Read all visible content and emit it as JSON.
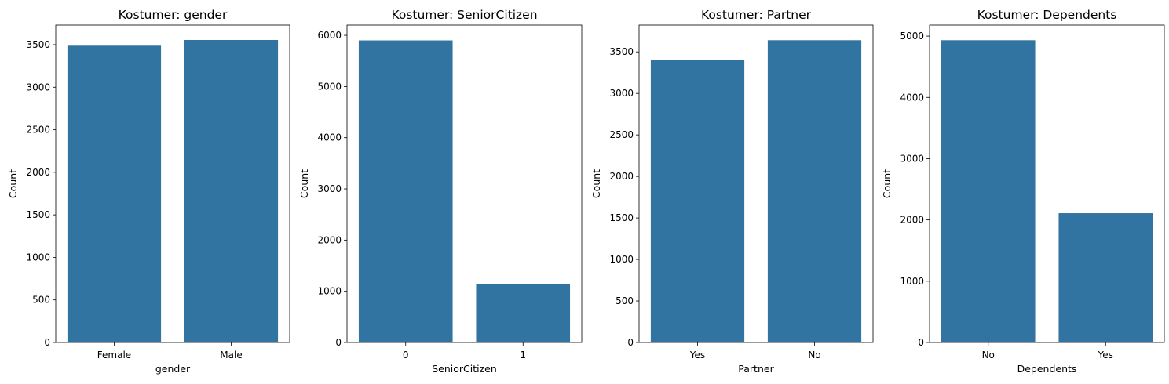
{
  "figure": {
    "background": "#ffffff",
    "bar_color": "#3274a1"
  },
  "chart_data": [
    {
      "type": "bar",
      "title": "Kostumer: gender",
      "xlabel": "gender",
      "ylabel": "Count",
      "categories": [
        "Female",
        "Male"
      ],
      "values": [
        3488,
        3555
      ],
      "ylim": [
        0,
        3730
      ],
      "yticks": [
        0,
        500,
        1000,
        1500,
        2000,
        2500,
        3000,
        3500
      ],
      "grid": false,
      "legend": "none"
    },
    {
      "type": "bar",
      "title": "Kostumer: SeniorCitizen",
      "xlabel": "SeniorCitizen",
      "ylabel": "Count",
      "categories": [
        "0",
        "1"
      ],
      "values": [
        5901,
        1142
      ],
      "ylim": [
        0,
        6200
      ],
      "yticks": [
        0,
        1000,
        2000,
        3000,
        4000,
        5000,
        6000
      ],
      "grid": false,
      "legend": "none"
    },
    {
      "type": "bar",
      "title": "Kostumer: Partner",
      "xlabel": "Partner",
      "ylabel": "Count",
      "categories": [
        "Yes",
        "No"
      ],
      "values": [
        3402,
        3641
      ],
      "ylim": [
        0,
        3823
      ],
      "yticks": [
        0,
        500,
        1000,
        1500,
        2000,
        2500,
        3000,
        3500
      ],
      "grid": false,
      "legend": "none"
    },
    {
      "type": "bar",
      "title": "Kostumer: Dependents",
      "xlabel": "Dependents",
      "ylabel": "Count",
      "categories": [
        "No",
        "Yes"
      ],
      "values": [
        4933,
        2110
      ],
      "ylim": [
        0,
        5180
      ],
      "yticks": [
        0,
        1000,
        2000,
        3000,
        4000,
        5000
      ],
      "grid": false,
      "legend": "none"
    }
  ]
}
